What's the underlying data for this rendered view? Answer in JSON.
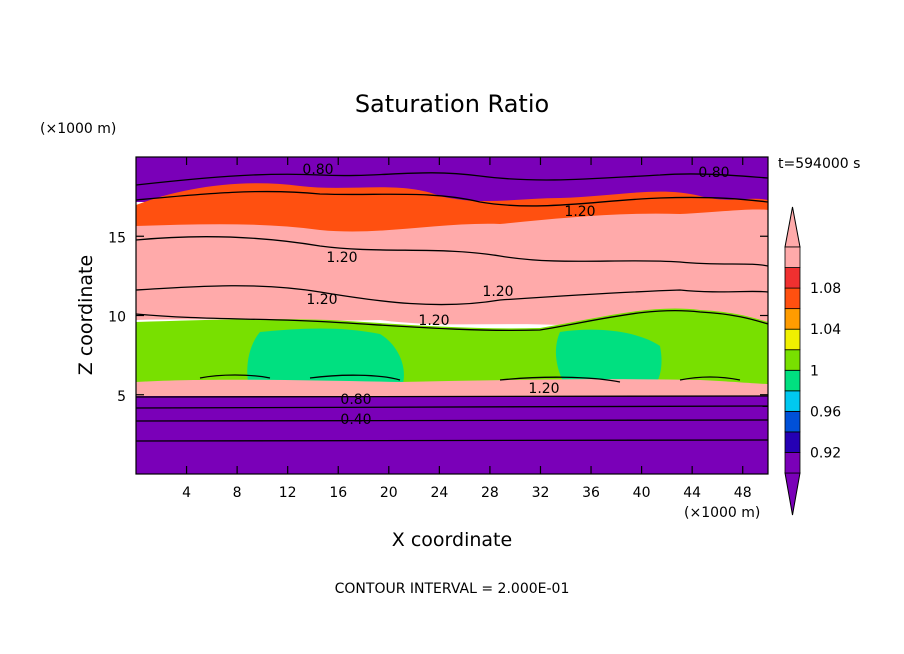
{
  "chart_data": {
    "type": "heatmap",
    "title": "Saturation Ratio",
    "xlabel": "X coordinate",
    "ylabel": "Z coordinate",
    "x_unit": "(×1000 m)",
    "y_unit": "(×1000 m)",
    "time_label": "t=594000 s",
    "footer": "CONTOUR INTERVAL = 2.000E-01",
    "xlim": [
      0,
      50
    ],
    "ylim": [
      0,
      20
    ],
    "x_ticks": [
      "4",
      "8",
      "12",
      "16",
      "20",
      "24",
      "28",
      "32",
      "36",
      "40",
      "44",
      "48"
    ],
    "y_ticks": [
      "5",
      "10",
      "15"
    ],
    "colorbar": {
      "labels": [
        "0.92",
        "0.96",
        "1",
        "1.04",
        "1.08"
      ],
      "colors": [
        "#7a00b8",
        "#2500b4",
        "#0050d8",
        "#00c8f0",
        "#00e080",
        "#78e000",
        "#f0f000",
        "#ff9c00",
        "#ff5010",
        "#f03030",
        "#ffaaaa"
      ]
    },
    "contour_labels": [
      "0.80",
      "0.80",
      "1.20",
      "1.20",
      "1.20",
      "1.20",
      "1.20",
      "1.20",
      "0.80",
      "0.40"
    ]
  }
}
